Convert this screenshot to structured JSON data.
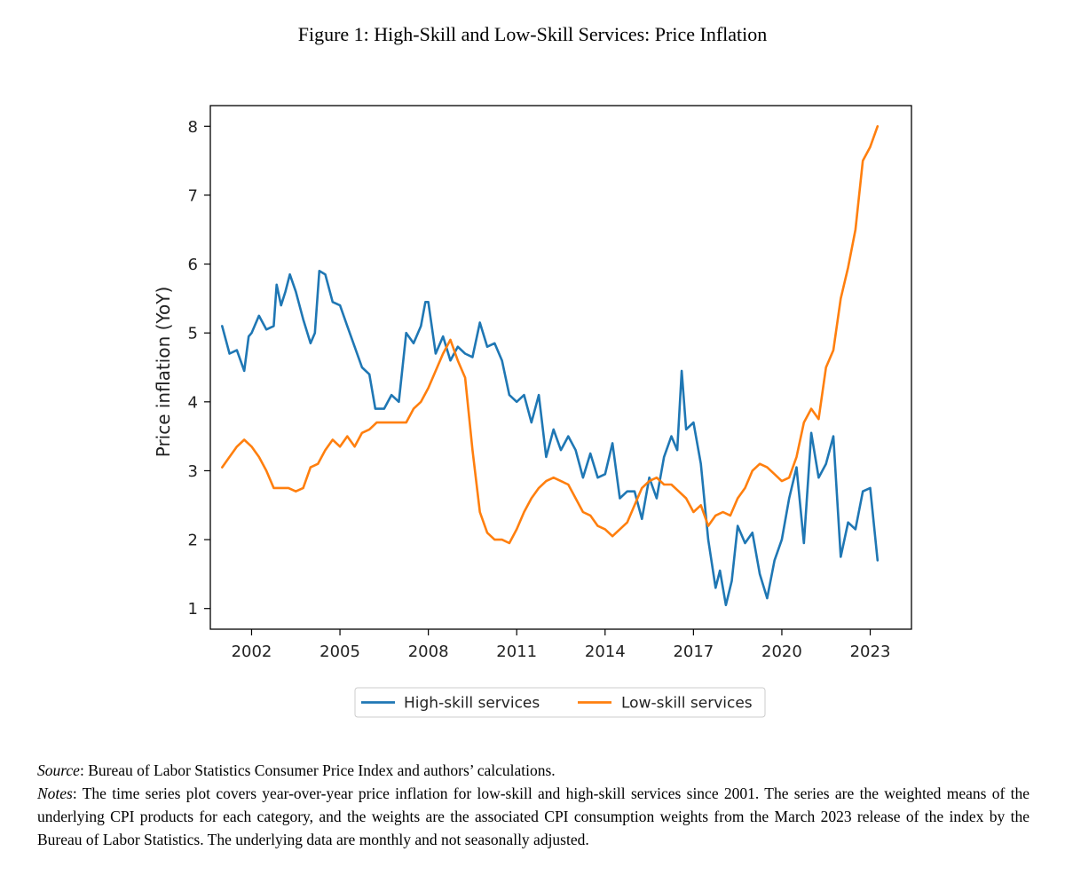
{
  "figure_title": "Figure 1: High-Skill and Low-Skill Services: Price Inflation",
  "caption": {
    "source_label": "Source",
    "source_text": ": Bureau of Labor Statistics Consumer Price Index and authors’ calculations.",
    "notes_label": "Notes",
    "notes_text": ": The time series plot covers year-over-year price inflation for low-skill and high-skill services since 2001. The series are the weighted means of the underlying CPI products for each category, and the weights are the associated CPI consumption weights from the March 2023 release of the index by the Bureau of Labor Statistics. The underlying data are monthly and not seasonally adjusted."
  },
  "chart_data": {
    "type": "line",
    "title": "",
    "xlabel": "",
    "ylabel": "Price inflation (YoY)",
    "xlim": [
      2000.6,
      2024.4
    ],
    "ylim": [
      0.7,
      8.3
    ],
    "x_ticks": [
      2002,
      2005,
      2008,
      2011,
      2014,
      2017,
      2020,
      2023
    ],
    "y_ticks": [
      1,
      2,
      3,
      4,
      5,
      6,
      7,
      8
    ],
    "grid": false,
    "legend_position": "bottom-center",
    "series": [
      {
        "name": "High-skill services",
        "color": "#1f77b4",
        "x": [
          2001.0,
          2001.25,
          2001.5,
          2001.75,
          2001.9,
          2002.0,
          2002.25,
          2002.5,
          2002.75,
          2002.85,
          2003.0,
          2003.15,
          2003.3,
          2003.5,
          2003.75,
          2004.0,
          2004.15,
          2004.3,
          2004.5,
          2004.75,
          2005.0,
          2005.25,
          2005.5,
          2005.75,
          2006.0,
          2006.2,
          2006.5,
          2006.75,
          2007.0,
          2007.25,
          2007.5,
          2007.75,
          2007.9,
          2008.0,
          2008.25,
          2008.5,
          2008.75,
          2009.0,
          2009.25,
          2009.5,
          2009.75,
          2010.0,
          2010.25,
          2010.5,
          2010.75,
          2011.0,
          2011.25,
          2011.5,
          2011.75,
          2012.0,
          2012.25,
          2012.5,
          2012.75,
          2013.0,
          2013.25,
          2013.5,
          2013.75,
          2014.0,
          2014.25,
          2014.5,
          2014.75,
          2015.0,
          2015.25,
          2015.5,
          2015.75,
          2016.0,
          2016.25,
          2016.45,
          2016.6,
          2016.75,
          2017.0,
          2017.25,
          2017.5,
          2017.75,
          2017.9,
          2018.1,
          2018.3,
          2018.5,
          2018.75,
          2019.0,
          2019.25,
          2019.5,
          2019.75,
          2020.0,
          2020.25,
          2020.5,
          2020.75,
          2021.0,
          2021.25,
          2021.5,
          2021.75,
          2022.0,
          2022.25,
          2022.5,
          2022.75,
          2023.0,
          2023.25
        ],
        "values": [
          5.1,
          4.7,
          4.75,
          4.45,
          4.95,
          5.0,
          5.25,
          5.05,
          5.1,
          5.7,
          5.4,
          5.6,
          5.85,
          5.6,
          5.2,
          4.85,
          5.0,
          5.9,
          5.85,
          5.45,
          5.4,
          5.1,
          4.8,
          4.5,
          4.4,
          3.9,
          3.9,
          4.1,
          4.0,
          5.0,
          4.85,
          5.1,
          5.45,
          5.45,
          4.7,
          4.95,
          4.6,
          4.8,
          4.7,
          4.65,
          5.15,
          4.8,
          4.85,
          4.6,
          4.1,
          4.0,
          4.1,
          3.7,
          4.1,
          3.2,
          3.6,
          3.3,
          3.5,
          3.3,
          2.9,
          3.25,
          2.9,
          2.95,
          3.4,
          2.6,
          2.7,
          2.7,
          2.3,
          2.9,
          2.6,
          3.2,
          3.5,
          3.3,
          4.45,
          3.6,
          3.7,
          3.1,
          2.0,
          1.3,
          1.55,
          1.05,
          1.4,
          2.2,
          1.95,
          2.1,
          1.5,
          1.15,
          1.7,
          2.0,
          2.6,
          3.05,
          1.95,
          3.55,
          2.9,
          3.1,
          3.5,
          1.75,
          2.25,
          2.15,
          2.7,
          2.75,
          1.7
        ]
      },
      {
        "name": "Low-skill services",
        "color": "#ff7f0e",
        "x": [
          2001.0,
          2001.25,
          2001.5,
          2001.75,
          2002.0,
          2002.25,
          2002.5,
          2002.75,
          2003.0,
          2003.25,
          2003.5,
          2003.75,
          2004.0,
          2004.25,
          2004.5,
          2004.75,
          2005.0,
          2005.25,
          2005.5,
          2005.75,
          2006.0,
          2006.25,
          2006.5,
          2006.75,
          2007.0,
          2007.25,
          2007.5,
          2007.75,
          2008.0,
          2008.25,
          2008.5,
          2008.75,
          2009.0,
          2009.25,
          2009.5,
          2009.75,
          2010.0,
          2010.25,
          2010.5,
          2010.75,
          2011.0,
          2011.25,
          2011.5,
          2011.75,
          2012.0,
          2012.25,
          2012.5,
          2012.75,
          2013.0,
          2013.25,
          2013.5,
          2013.75,
          2014.0,
          2014.25,
          2014.5,
          2014.75,
          2015.0,
          2015.25,
          2015.5,
          2015.75,
          2016.0,
          2016.25,
          2016.5,
          2016.75,
          2017.0,
          2017.25,
          2017.5,
          2017.75,
          2018.0,
          2018.25,
          2018.5,
          2018.75,
          2019.0,
          2019.25,
          2019.5,
          2019.75,
          2020.0,
          2020.25,
          2020.5,
          2020.75,
          2021.0,
          2021.25,
          2021.5,
          2021.75,
          2022.0,
          2022.25,
          2022.5,
          2022.75,
          2023.0,
          2023.25
        ],
        "values": [
          3.05,
          3.2,
          3.35,
          3.45,
          3.35,
          3.2,
          3.0,
          2.75,
          2.75,
          2.75,
          2.7,
          2.75,
          3.05,
          3.1,
          3.3,
          3.45,
          3.35,
          3.5,
          3.35,
          3.55,
          3.6,
          3.7,
          3.7,
          3.7,
          3.7,
          3.7,
          3.9,
          4.0,
          4.2,
          4.45,
          4.7,
          4.9,
          4.6,
          4.35,
          3.3,
          2.4,
          2.1,
          2.0,
          2.0,
          1.95,
          2.15,
          2.4,
          2.6,
          2.75,
          2.85,
          2.9,
          2.85,
          2.8,
          2.6,
          2.4,
          2.35,
          2.2,
          2.15,
          2.05,
          2.15,
          2.25,
          2.5,
          2.75,
          2.85,
          2.9,
          2.8,
          2.8,
          2.7,
          2.6,
          2.4,
          2.5,
          2.2,
          2.35,
          2.4,
          2.35,
          2.6,
          2.75,
          3.0,
          3.1,
          3.05,
          2.95,
          2.85,
          2.9,
          3.2,
          3.7,
          3.9,
          3.75,
          4.5,
          4.75,
          5.5,
          5.95,
          6.5,
          7.5,
          7.7,
          8.0
        ]
      }
    ]
  }
}
